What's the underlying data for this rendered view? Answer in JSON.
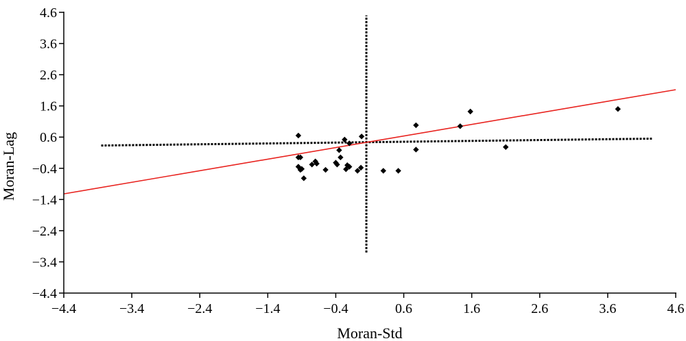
{
  "chart_data": {
    "type": "scatter",
    "title": "",
    "xlabel": "Moran-Std",
    "ylabel": "Moran-Lag",
    "xlim": [
      -4.4,
      4.6
    ],
    "ylim": [
      -4.4,
      4.6
    ],
    "x_ticks": [
      -4.4,
      -3.4,
      -2.4,
      -1.4,
      -0.4,
      0.6,
      1.6,
      2.6,
      3.6,
      4.6
    ],
    "y_ticks": [
      -4.4,
      -3.4,
      -2.4,
      -1.4,
      -0.4,
      0.6,
      1.6,
      2.6,
      3.6,
      4.6
    ],
    "x_tick_labels": [
      "−4.4",
      "−3.4",
      "−2.4",
      "−1.4",
      "−0.4",
      "0.6",
      "1.6",
      "2.6",
      "3.6",
      "4.6"
    ],
    "y_tick_labels": [
      "−4.4",
      "−3.4",
      "−2.4",
      "−1.4",
      "−0.4",
      "0.6",
      "1.6",
      "2.6",
      "3.6",
      "4.6"
    ],
    "grid": false,
    "legend": "none",
    "colors": {
      "points": "#000000",
      "regression": "#e8211d",
      "reference": "#000000",
      "axis": "#000000"
    },
    "points": [
      {
        "x": -0.95,
        "y": 0.65
      },
      {
        "x": -0.95,
        "y": -0.05
      },
      {
        "x": -0.92,
        "y": -0.05
      },
      {
        "x": -0.95,
        "y": -0.35
      },
      {
        "x": -0.9,
        "y": -0.42
      },
      {
        "x": -0.92,
        "y": -0.45
      },
      {
        "x": -0.87,
        "y": -0.72
      },
      {
        "x": -0.75,
        "y": -0.28
      },
      {
        "x": -0.7,
        "y": -0.18
      },
      {
        "x": -0.68,
        "y": -0.25
      },
      {
        "x": -0.55,
        "y": -0.45
      },
      {
        "x": -0.4,
        "y": -0.22
      },
      {
        "x": -0.38,
        "y": -0.28
      },
      {
        "x": -0.33,
        "y": -0.05
      },
      {
        "x": -0.35,
        "y": 0.18
      },
      {
        "x": -0.27,
        "y": 0.52
      },
      {
        "x": -0.25,
        "y": -0.43
      },
      {
        "x": -0.23,
        "y": -0.3
      },
      {
        "x": -0.2,
        "y": -0.35
      },
      {
        "x": -0.2,
        "y": 0.4
      },
      {
        "x": -0.08,
        "y": -0.48
      },
      {
        "x": -0.03,
        "y": -0.38
      },
      {
        "x": -0.02,
        "y": 0.62
      },
      {
        "x": 0.3,
        "y": -0.48
      },
      {
        "x": 0.52,
        "y": -0.48
      },
      {
        "x": 0.78,
        "y": 0.98
      },
      {
        "x": 0.78,
        "y": 0.2
      },
      {
        "x": 1.43,
        "y": 0.95
      },
      {
        "x": 1.58,
        "y": 1.42
      },
      {
        "x": 2.1,
        "y": 0.28
      },
      {
        "x": 3.75,
        "y": 1.5
      }
    ],
    "regression_line": {
      "x": [
        -4.4,
        4.6
      ],
      "y": [
        -1.22,
        2.12
      ]
    },
    "reference_lines": {
      "horizontal": {
        "x": [
          -3.85,
          4.25
        ],
        "y": [
          0.33,
          0.55
        ]
      },
      "vertical": {
        "x": [
          0.05,
          0.05
        ],
        "y": [
          -3.1,
          4.5
        ]
      }
    }
  }
}
